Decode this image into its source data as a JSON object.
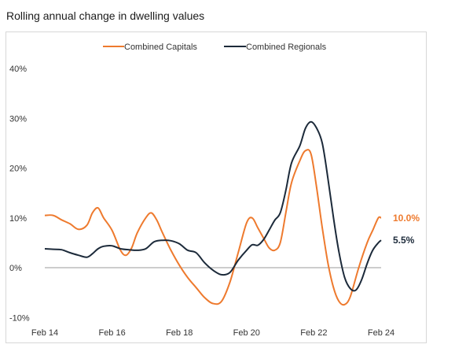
{
  "chart_data": {
    "type": "line",
    "title": "Rolling annual change in dwelling values",
    "xlabel": "",
    "ylabel": "",
    "x_range": [
      "2014-02",
      "2024-02"
    ],
    "ylim": [
      -10,
      40
    ],
    "y_ticks": [
      {
        "value": 40,
        "label": "40%"
      },
      {
        "value": 30,
        "label": "30%"
      },
      {
        "value": 20,
        "label": "20%"
      },
      {
        "value": 10,
        "label": "10%"
      },
      {
        "value": 0,
        "label": "0%"
      },
      {
        "value": -10,
        "label": "-10%"
      }
    ],
    "x_ticks": [
      {
        "value": "2014-02",
        "label": "Feb 14"
      },
      {
        "value": "2016-02",
        "label": "Feb 16"
      },
      {
        "value": "2018-02",
        "label": "Feb 18"
      },
      {
        "value": "2020-02",
        "label": "Feb 20"
      },
      {
        "value": "2022-02",
        "label": "Feb 22"
      },
      {
        "value": "2024-02",
        "label": "Feb 24"
      }
    ],
    "grid": false,
    "zero_line": true,
    "legend": "top-center",
    "series": [
      {
        "name": "Combined Capitals",
        "color": "#ee7a2e",
        "end_label": "10.0%",
        "points": [
          [
            "2014-02",
            10.5
          ],
          [
            "2014-05",
            10.5
          ],
          [
            "2014-08",
            9.6
          ],
          [
            "2014-11",
            8.8
          ],
          [
            "2015-02",
            7.7
          ],
          [
            "2015-05",
            8.5
          ],
          [
            "2015-07",
            11.0
          ],
          [
            "2015-09",
            12.0
          ],
          [
            "2015-11",
            10.0
          ],
          [
            "2016-02",
            7.5
          ],
          [
            "2016-05",
            3.5
          ],
          [
            "2016-07",
            2.5
          ],
          [
            "2016-09",
            4.0
          ],
          [
            "2016-11",
            7.0
          ],
          [
            "2017-02",
            10.0
          ],
          [
            "2017-04",
            11.0
          ],
          [
            "2017-06",
            9.5
          ],
          [
            "2017-08",
            7.0
          ],
          [
            "2017-11",
            3.5
          ],
          [
            "2018-02",
            0.5
          ],
          [
            "2018-05",
            -2.0
          ],
          [
            "2018-08",
            -4.0
          ],
          [
            "2018-11",
            -6.0
          ],
          [
            "2019-02",
            -7.2
          ],
          [
            "2019-05",
            -6.8
          ],
          [
            "2019-08",
            -3.0
          ],
          [
            "2019-11",
            3.0
          ],
          [
            "2020-02",
            9.0
          ],
          [
            "2020-04",
            10.0
          ],
          [
            "2020-06",
            8.0
          ],
          [
            "2020-08",
            6.0
          ],
          [
            "2020-10",
            4.0
          ],
          [
            "2020-12",
            3.5
          ],
          [
            "2021-02",
            5.0
          ],
          [
            "2021-04",
            11.0
          ],
          [
            "2021-06",
            17.0
          ],
          [
            "2021-09",
            21.5
          ],
          [
            "2021-11",
            23.5
          ],
          [
            "2022-01",
            22.8
          ],
          [
            "2022-03",
            16.0
          ],
          [
            "2022-05",
            8.0
          ],
          [
            "2022-07",
            1.0
          ],
          [
            "2022-09",
            -4.0
          ],
          [
            "2022-11",
            -6.8
          ],
          [
            "2023-01",
            -7.4
          ],
          [
            "2023-03",
            -5.8
          ],
          [
            "2023-06",
            0.0
          ],
          [
            "2023-09",
            5.0
          ],
          [
            "2023-11",
            7.5
          ],
          [
            "2024-01",
            10.0
          ],
          [
            "2024-02",
            10.0
          ]
        ]
      },
      {
        "name": "Combined Regionals",
        "color": "#1c2a3a",
        "end_label": "5.5%",
        "points": [
          [
            "2014-02",
            3.8
          ],
          [
            "2014-05",
            3.7
          ],
          [
            "2014-08",
            3.6
          ],
          [
            "2014-11",
            3.0
          ],
          [
            "2015-02",
            2.5
          ],
          [
            "2015-05",
            2.1
          ],
          [
            "2015-07",
            2.8
          ],
          [
            "2015-09",
            3.8
          ],
          [
            "2015-11",
            4.3
          ],
          [
            "2016-02",
            4.4
          ],
          [
            "2016-05",
            3.8
          ],
          [
            "2016-08",
            3.6
          ],
          [
            "2016-11",
            3.5
          ],
          [
            "2017-02",
            3.8
          ],
          [
            "2017-05",
            5.2
          ],
          [
            "2017-08",
            5.5
          ],
          [
            "2017-11",
            5.4
          ],
          [
            "2018-02",
            4.8
          ],
          [
            "2018-05",
            3.5
          ],
          [
            "2018-08",
            3.0
          ],
          [
            "2018-11",
            1.0
          ],
          [
            "2019-02",
            -0.5
          ],
          [
            "2019-05",
            -1.4
          ],
          [
            "2019-08",
            -1.0
          ],
          [
            "2019-11",
            1.5
          ],
          [
            "2020-02",
            3.5
          ],
          [
            "2020-04",
            4.6
          ],
          [
            "2020-06",
            4.5
          ],
          [
            "2020-08",
            5.6
          ],
          [
            "2020-10",
            7.5
          ],
          [
            "2020-12",
            9.5
          ],
          [
            "2021-02",
            11.0
          ],
          [
            "2021-04",
            15.5
          ],
          [
            "2021-06",
            21.0
          ],
          [
            "2021-09",
            24.5
          ],
          [
            "2021-11",
            28.0
          ],
          [
            "2022-01",
            29.3
          ],
          [
            "2022-03",
            28.0
          ],
          [
            "2022-05",
            25.0
          ],
          [
            "2022-07",
            18.0
          ],
          [
            "2022-09",
            10.0
          ],
          [
            "2022-11",
            3.0
          ],
          [
            "2023-01",
            -2.0
          ],
          [
            "2023-03",
            -4.2
          ],
          [
            "2023-05",
            -4.5
          ],
          [
            "2023-07",
            -2.5
          ],
          [
            "2023-09",
            0.8
          ],
          [
            "2023-11",
            3.5
          ],
          [
            "2024-01",
            5.0
          ],
          [
            "2024-02",
            5.5
          ]
        ]
      }
    ]
  }
}
